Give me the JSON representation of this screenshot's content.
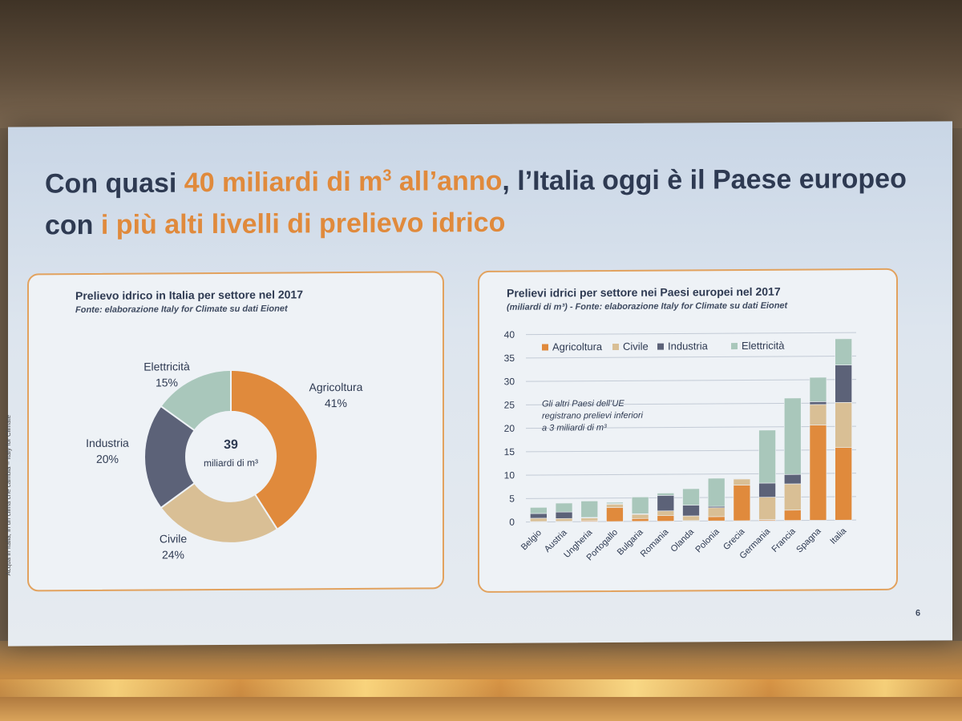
{
  "slide": {
    "title_part1": "Con quasi ",
    "title_highlight1": "40 miliardi di m",
    "title_highlight1_sup": "3",
    "title_highlight1_end": " all’anno",
    "title_part2": ", l’Italia oggi è il Paese europeo con ",
    "title_highlight2": "i più alti livelli di prelievo idrico",
    "side_credit": "Acqua in Italia, in un clima che cambia – Italy for Climate",
    "page_number": "6",
    "colors": {
      "agricoltura": "#e08a3c",
      "civile": "#d9bf95",
      "industria": "#5c6278",
      "elettricita": "#a9c7bb",
      "accent": "#e08a3c",
      "title": "#2e3a52"
    }
  },
  "left_panel": {
    "title": "Prelievo idrico in Italia per settore nel 2017",
    "source": "Fonte: elaborazione Italy for Climate su dati Eionet",
    "center_value": "39",
    "center_unit": "miliardi di m³"
  },
  "right_panel": {
    "title": "Prelievi idrici per settore nei Paesi europei nel 2017",
    "source": "(miliardi di m³) - Fonte: elaborazione Italy for Climate su dati Eionet",
    "annotation": [
      "Gli altri Paesi dell’UE",
      "registrano prelievi inferiori",
      "a 3 miliardi di m³"
    ]
  },
  "chart_data": [
    {
      "type": "pie",
      "title": "Prelievo idrico in Italia per settore nel 2017",
      "donut": true,
      "total": 39,
      "total_unit": "miliardi di m³",
      "slices": [
        {
          "name": "Agricoltura",
          "value": 41,
          "label": "41%",
          "color": "#e08a3c"
        },
        {
          "name": "Civile",
          "value": 24,
          "label": "24%",
          "color": "#d9bf95"
        },
        {
          "name": "Industria",
          "value": 20,
          "label": "20%",
          "color": "#5c6278"
        },
        {
          "name": "Elettricità",
          "value": 15,
          "label": "15%",
          "color": "#a9c7bb"
        }
      ]
    },
    {
      "type": "bar",
      "stacked": true,
      "title": "Prelievi idrici per settore nei Paesi europei nel 2017",
      "ylim": [
        0,
        40
      ],
      "yticks": [
        0,
        5,
        10,
        15,
        20,
        25,
        30,
        35,
        40
      ],
      "grid": true,
      "legend_position": "top-left",
      "categories": [
        "Belgio",
        "Austria",
        "Ungheria",
        "Portogallo",
        "Bulgaria",
        "Romania",
        "Olanda",
        "Polonia",
        "Grecia",
        "Germania",
        "Francia",
        "Spagna",
        "Italia"
      ],
      "series": [
        {
          "name": "Agricoltura",
          "color": "#e08a3c",
          "values": [
            0.1,
            0.1,
            0.2,
            3.0,
            0.6,
            1.2,
            0.1,
            0.9,
            7.6,
            0.2,
            2.2,
            20.3,
            15.5
          ]
        },
        {
          "name": "Civile",
          "color": "#d9bf95",
          "values": [
            0.7,
            0.6,
            0.6,
            0.7,
            0.9,
            1.0,
            1.0,
            1.9,
            1.3,
            4.8,
            5.6,
            4.4,
            9.6
          ]
        },
        {
          "name": "Industria",
          "color": "#5c6278",
          "values": [
            1.0,
            1.4,
            0.1,
            0.1,
            0.1,
            3.3,
            2.3,
            0.3,
            0.1,
            3.0,
            2.0,
            0.6,
            8.0
          ]
        },
        {
          "name": "Elettricità",
          "color": "#a9c7bb",
          "values": [
            1.3,
            1.9,
            3.5,
            0.3,
            3.6,
            0.5,
            3.5,
            6.0,
            0.0,
            11.3,
            16.3,
            5.2,
            5.6
          ]
        }
      ]
    }
  ]
}
